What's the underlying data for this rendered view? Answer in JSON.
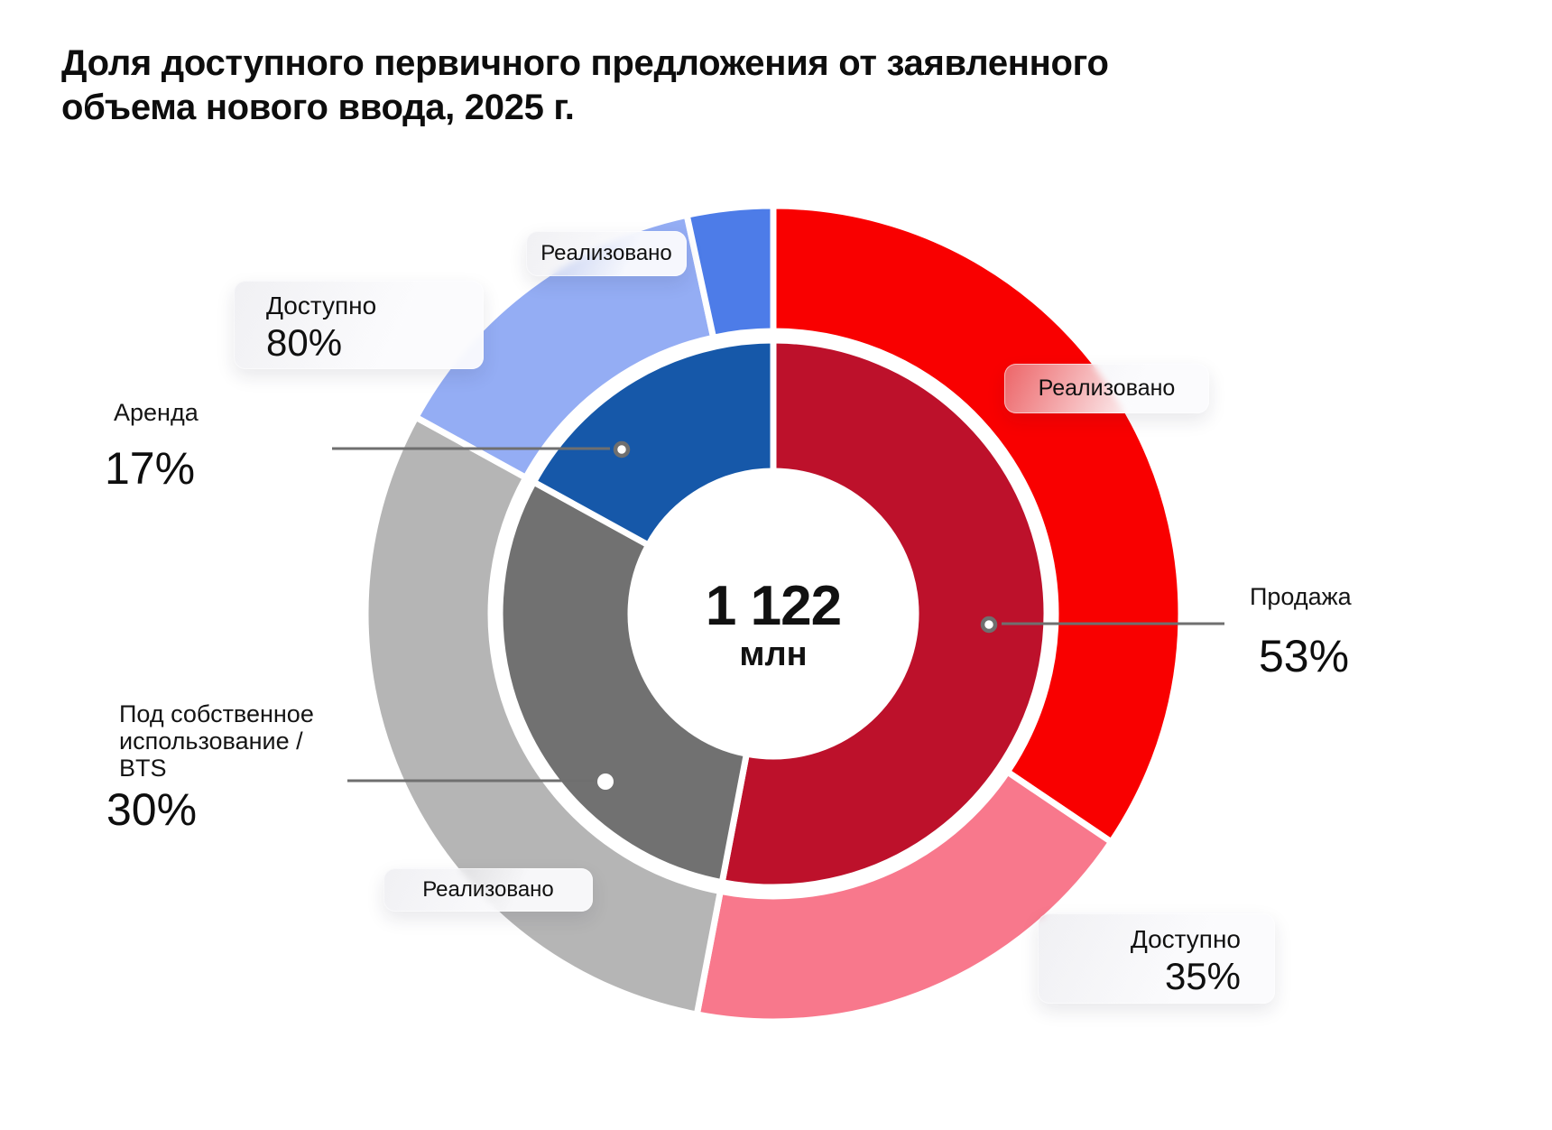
{
  "title": {
    "line1": "Доля доступного первичного предложения от заявленного",
    "line2": "объема нового ввода, 2025 г."
  },
  "center": {
    "value": "1 122",
    "unit": "млн"
  },
  "labels": {
    "arenda": {
      "name": "Аренда",
      "value": "17%"
    },
    "bts": {
      "name": "Под собственное использование / BTS",
      "value": "30%"
    },
    "prodazha": {
      "name": "Продажа",
      "value": "53%"
    }
  },
  "badges": {
    "arenda_realizovano": {
      "label": "Реализовано"
    },
    "arenda_dostupno": {
      "label": "Доступно",
      "value": "80%"
    },
    "prodazha_realizovano": {
      "label": "Реализовано"
    },
    "bts_realizovano": {
      "label": "Реализовано"
    },
    "prodazha_dostupno": {
      "label": "Доступно",
      "value": "35%"
    }
  },
  "chart_data": {
    "type": "donut-nested",
    "title": "Доля доступного первичного предложения от заявленного объема нового ввода, 2025 г.",
    "center_label": {
      "value": "1 122",
      "unit": "млн"
    },
    "start_angle_deg": 0,
    "direction": "clockwise",
    "inner_ring": [
      {
        "id": "prodazha",
        "label": "Продажа",
        "pct": 53,
        "color": "#BD112B"
      },
      {
        "id": "bts",
        "label": "Под собственное использование / BTS",
        "pct": 30,
        "color": "#717171"
      },
      {
        "id": "arenda",
        "label": "Аренда",
        "pct": 17,
        "color": "#1658A9"
      }
    ],
    "outer_ring": [
      {
        "id": "prodazha-realizovano",
        "parent": "prodazha",
        "label": "Реализовано",
        "pct_of_parent": 65,
        "color": "#F90000"
      },
      {
        "id": "prodazha-dostupno",
        "parent": "prodazha",
        "label": "Доступно",
        "pct_of_parent": 35,
        "color": "#F8788C"
      },
      {
        "id": "bts-realizovano",
        "parent": "bts",
        "label": "Реализовано",
        "pct_of_parent": 100,
        "color": "#B5B5B5"
      },
      {
        "id": "arenda-dostupno",
        "parent": "arenda",
        "label": "Доступно",
        "pct_of_parent": 80,
        "color": "#94ADF4"
      },
      {
        "id": "arenda-realizovano",
        "parent": "arenda",
        "label": "Реализовано",
        "pct_of_parent": 20,
        "color": "#4D7CE8"
      }
    ],
    "callout_line_color": "#6F6F6F"
  }
}
